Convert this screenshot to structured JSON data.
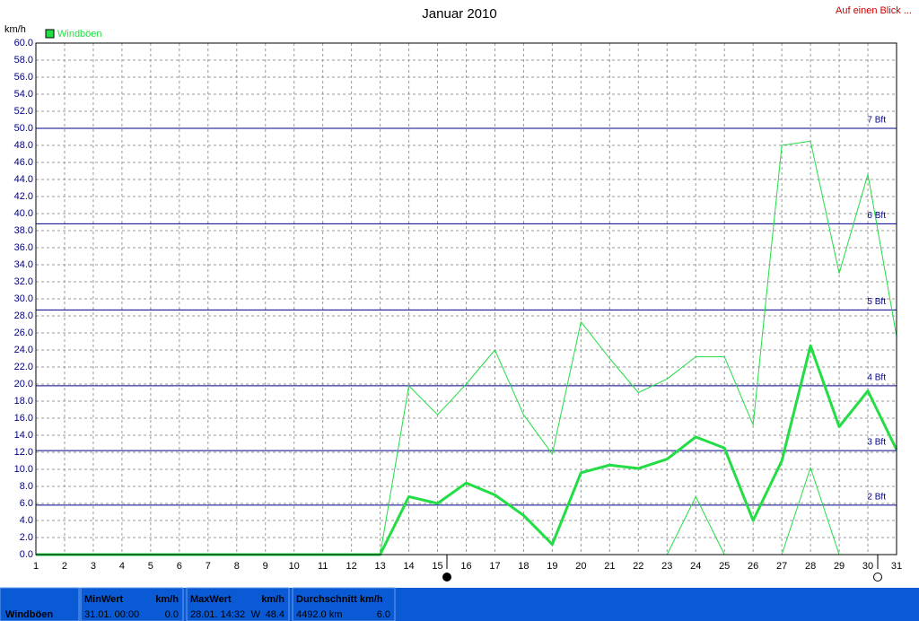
{
  "chart_data": {
    "type": "line",
    "title": "Januar 2010",
    "link": "Auf einen Blick ...",
    "y_label": "km/h",
    "legend": "Windböen",
    "legend_color": "#22dd44",
    "x": [
      1,
      2,
      3,
      4,
      5,
      6,
      7,
      8,
      9,
      10,
      11,
      12,
      13,
      14,
      15,
      16,
      17,
      18,
      19,
      20,
      21,
      22,
      23,
      24,
      25,
      26,
      27,
      28,
      29,
      30,
      31
    ],
    "xlim": [
      1,
      31
    ],
    "series": [
      {
        "color": "#22dd44",
        "line_width": 1,
        "values": [
          0,
          0,
          0,
          0,
          0,
          0,
          0,
          0,
          0,
          0,
          0,
          0,
          0,
          19.8,
          16.4,
          20.0,
          24.0,
          16.4,
          11.8,
          27.3,
          23.0,
          19.0,
          20.6,
          23.2,
          23.2,
          15.2,
          48.0,
          48.5,
          33.0,
          44.6,
          25.6
        ]
      },
      {
        "color": "#22dd44",
        "line_width": 3,
        "values": [
          0,
          0,
          0,
          0,
          0,
          0,
          0,
          0,
          0,
          0,
          0,
          0,
          0,
          6.8,
          6.0,
          8.4,
          7.0,
          4.6,
          1.2,
          9.6,
          10.5,
          10.1,
          11.2,
          13.8,
          12.5,
          4.0,
          11.0,
          24.5,
          15.0,
          19.2,
          12.3
        ]
      },
      {
        "color": "#22dd44",
        "line_width": 1,
        "values": [
          0,
          0,
          0,
          0,
          0,
          0,
          0,
          0,
          0,
          0,
          0,
          0,
          0,
          0,
          0,
          0,
          0,
          0,
          0,
          0,
          0,
          0,
          0,
          6.8,
          0,
          0,
          0,
          10.2,
          0,
          0,
          0
        ]
      }
    ],
    "ylim": [
      0,
      60
    ],
    "yticks": [
      {
        "value": 0,
        "label": "0.0"
      },
      {
        "value": 2,
        "label": "2.0"
      },
      {
        "value": 4,
        "label": "4.0"
      },
      {
        "value": 6,
        "label": "6.0"
      },
      {
        "value": 8,
        "label": "8.0"
      },
      {
        "value": 10,
        "label": "10.0"
      },
      {
        "value": 12,
        "label": "12.0"
      },
      {
        "value": 14,
        "label": "14.0"
      },
      {
        "value": 16,
        "label": "16.0"
      },
      {
        "value": 18,
        "label": "18.0"
      },
      {
        "value": 20,
        "label": "20.0"
      },
      {
        "value": 22,
        "label": "22.0"
      },
      {
        "value": 24,
        "label": "24.0"
      },
      {
        "value": 26,
        "label": "26.0"
      },
      {
        "value": 28,
        "label": "28.0"
      },
      {
        "value": 30,
        "label": "30.0"
      },
      {
        "value": 32,
        "label": "32.0"
      },
      {
        "value": 34,
        "label": "34.0"
      },
      {
        "value": 36,
        "label": "36.0"
      },
      {
        "value": 38,
        "label": "38.0"
      },
      {
        "value": 40,
        "label": "40.0"
      },
      {
        "value": 42,
        "label": "42.0"
      },
      {
        "value": 44,
        "label": "44.0"
      },
      {
        "value": 46,
        "label": "46.0"
      },
      {
        "value": 48,
        "label": "48.0"
      },
      {
        "value": 50,
        "label": "50.0"
      },
      {
        "value": 52,
        "label": "52.0"
      },
      {
        "value": 54,
        "label": "54.0"
      },
      {
        "value": 56,
        "label": "56.0"
      },
      {
        "value": 58,
        "label": "58.0"
      },
      {
        "value": 60,
        "label": "60.0"
      }
    ],
    "grid": true,
    "reference_lines": [
      {
        "value": 5.8,
        "label": "2 Bft"
      },
      {
        "value": 12.2,
        "label": "3 Bft"
      },
      {
        "value": 19.8,
        "label": "4 Bft"
      },
      {
        "value": 28.7,
        "label": "5 Bft"
      },
      {
        "value": 38.8,
        "label": "6 Bft"
      },
      {
        "value": 50.0,
        "label": "7 Bft"
      }
    ],
    "reference_color": "#00008b"
  },
  "summary": {
    "name": "Windböen",
    "min": {
      "title": "MinWert",
      "unit": "km/h",
      "time": "31.01.  00:00",
      "value": "0.0"
    },
    "max": {
      "title": "MaxWert",
      "unit": "km/h",
      "time": "28.01.  14:32",
      "dir": "W",
      "value": "48.4"
    },
    "avg": {
      "title": "Durchschnitt km/h",
      "distance": "4492.0 km",
      "value": "6.0"
    }
  }
}
